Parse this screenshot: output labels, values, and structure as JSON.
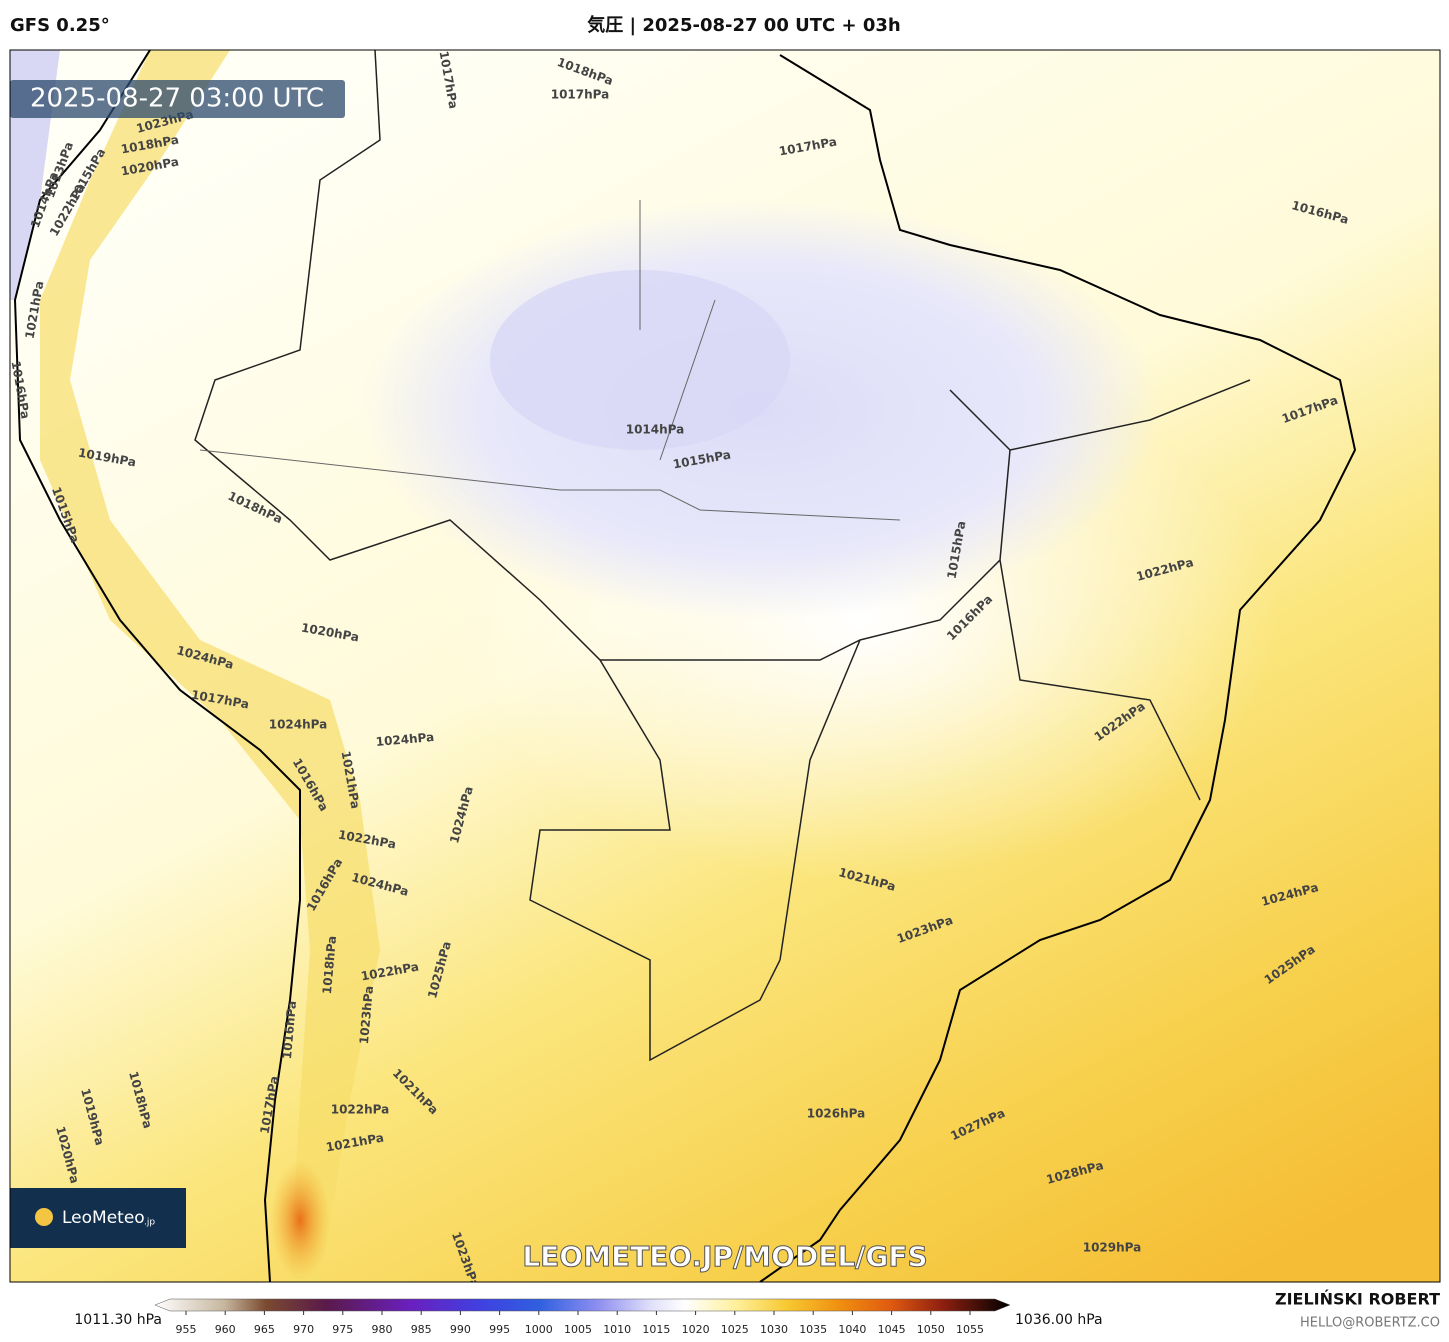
{
  "header": {
    "left": "GFS 0.25°",
    "title": "気圧 | 2025-08-27 00 UTC + 03h"
  },
  "map": {
    "timestamp": "2025-08-27 03:00 UTC",
    "contour_labels": [
      "1018hPa",
      "1017hPa",
      "1017hPa",
      "1017hPa",
      "1016hPa",
      "1014hPa",
      "1015hPa",
      "1017hPa",
      "1018hPa",
      "1019hPa",
      "1015hPa",
      "1016hPa",
      "1022hPa",
      "1020hPa",
      "1024hPa",
      "1017hPa",
      "1024hPa",
      "1024hPa",
      "1021hPa",
      "1016hPa",
      "1022hPa",
      "1024hPa",
      "1022hPa",
      "1021hPa",
      "1024hPa",
      "1016hPa",
      "1024hPa",
      "1023hPa",
      "1022hPa",
      "1025hPa",
      "1018hPa",
      "1025hPa",
      "1023hPa",
      "1016hPa",
      "1021hPa",
      "1018hPa",
      "1019hPa",
      "1026hPa",
      "1022hPa",
      "1027hPa",
      "1017hPa",
      "1020hPa",
      "1021hPa",
      "1028hPa",
      "1029hPa",
      "1023hPa",
      "1015hPa",
      "1014hPa",
      "1013hPa",
      "1022hPa",
      "1023hPa",
      "1018hPa",
      "1020hPa",
      "1021hPa",
      "1016hPa",
      "1015hPa"
    ],
    "logo": {
      "name": "LeoMeteo",
      "suffix": ".jp"
    },
    "watermark": "LEOMETEO.JP/MODEL/GFS"
  },
  "colorbar": {
    "min_label": "1011.30 hPa",
    "max_label": "1036.00 hPa",
    "ticks": [
      955,
      960,
      965,
      970,
      975,
      980,
      985,
      990,
      995,
      1000,
      1005,
      1010,
      1015,
      1020,
      1025,
      1030,
      1035,
      1040,
      1045,
      1050,
      1055
    ]
  },
  "footer": {
    "author": "ZIELIŃSKI ROBERT",
    "email": "HELLO@ROBERTZ.CO"
  }
}
